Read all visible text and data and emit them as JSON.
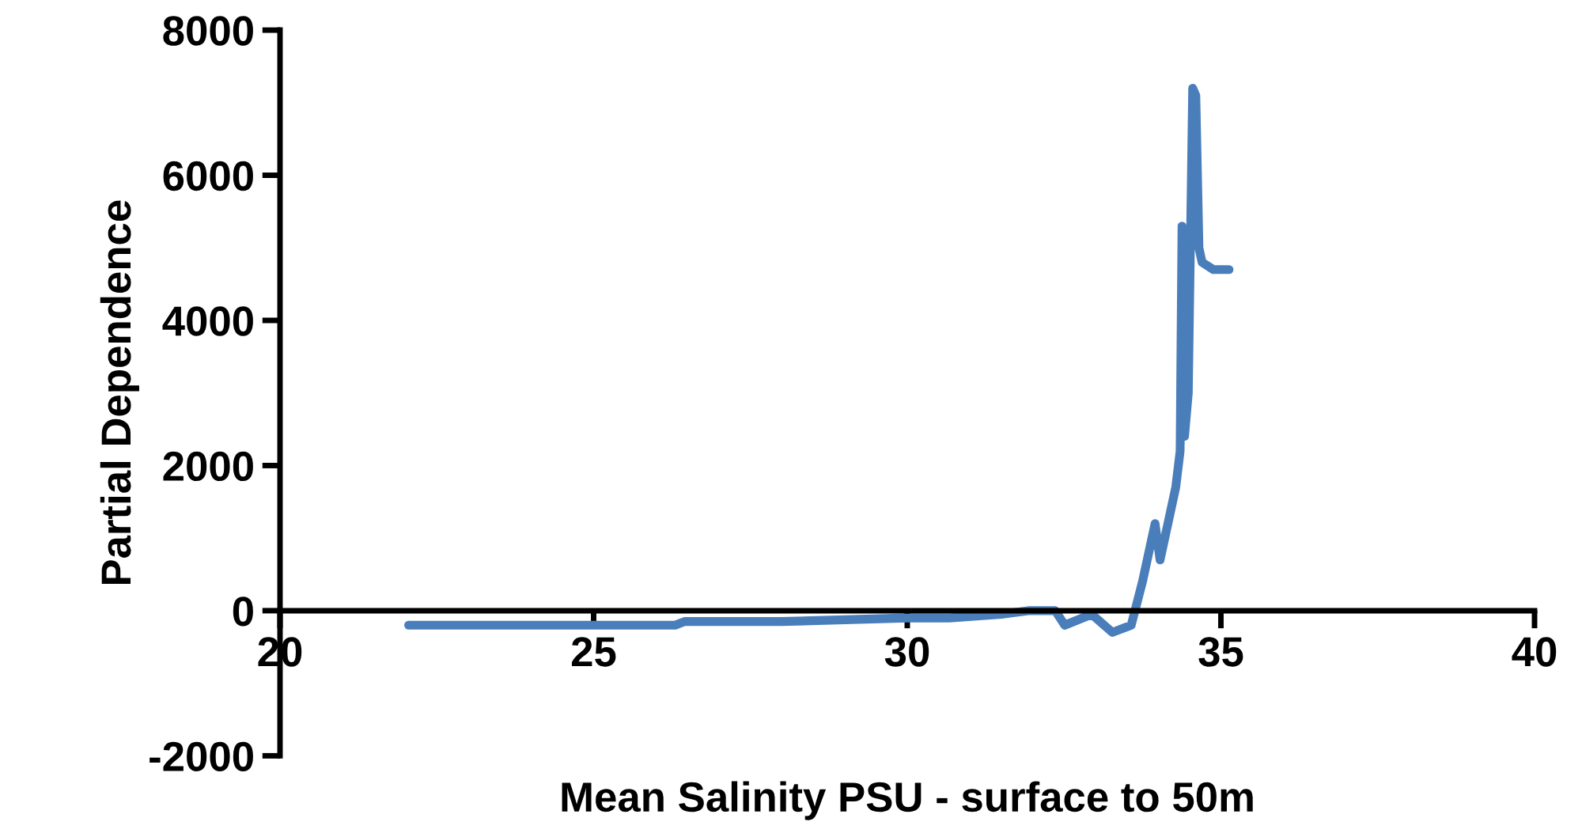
{
  "chart_data": {
    "type": "line",
    "xlabel": "Mean Salinity PSU - surface to 50m",
    "ylabel": "Partial Dependence",
    "xlim": [
      20,
      40
    ],
    "xticks": [
      20,
      25,
      30,
      35,
      40
    ],
    "ylim": [
      -2000,
      8000
    ],
    "yticks": [
      -2000,
      0,
      2000,
      4000,
      6000,
      8000
    ],
    "grid": false,
    "series": [
      {
        "color": "#4a7ebb",
        "x": [
          22.05,
          24,
          26.3,
          26.45,
          28,
          30,
          30.67,
          31.5,
          31.93,
          32.18,
          32.36,
          32.51,
          32.94,
          33.27,
          33.57,
          33.75,
          33.95,
          34.03,
          34.28,
          34.35,
          34.38,
          34.42,
          34.48,
          34.55,
          34.6,
          34.65,
          34.7,
          34.88,
          35.13
        ],
        "values": [
          -200,
          -200,
          -200,
          -150,
          -150,
          -100,
          -100,
          -50,
          0,
          0,
          0,
          -200,
          -50,
          -300,
          -200,
          400,
          1200,
          700,
          1700,
          2200,
          5300,
          2400,
          3000,
          7200,
          7100,
          5000,
          4800,
          4700,
          4700
        ]
      }
    ]
  }
}
